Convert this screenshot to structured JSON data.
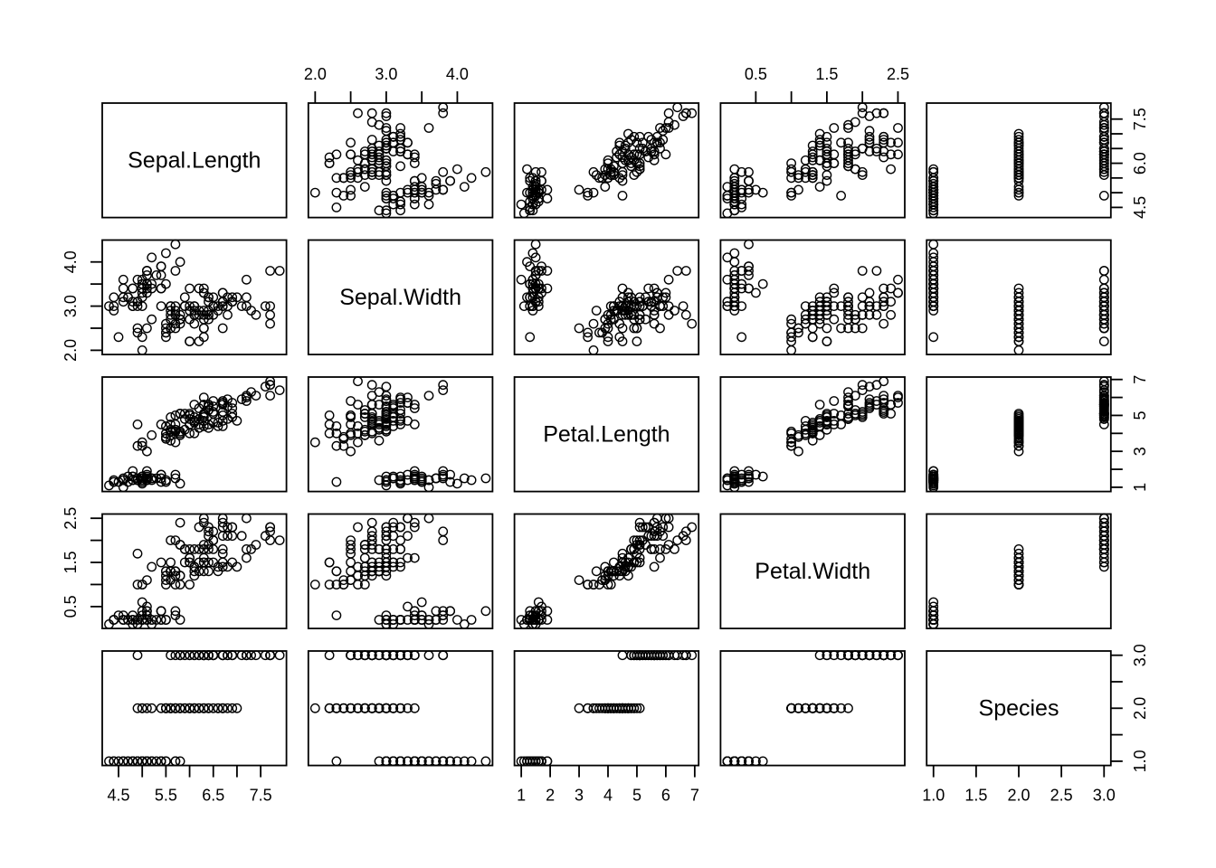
{
  "figure": {
    "background": "#ffffff",
    "stroke_color": "#000000"
  },
  "chart_data": {
    "type": "scatter",
    "subtype": "scatterplot-matrix",
    "grid": "5x5",
    "diagonal_labels": [
      "Sepal.Length",
      "Sepal.Width",
      "Petal.Length",
      "Petal.Width",
      "Species"
    ],
    "point_style": "open-circle",
    "variables": [
      {
        "name": "Sepal.Length",
        "lim": [
          4.3,
          7.9
        ],
        "ticks": [
          4.5,
          5.0,
          5.5,
          6.0,
          6.5,
          7.0,
          7.5
        ],
        "labels_h": [
          [
            4.5,
            "4.5"
          ],
          [
            5.5,
            "5.5"
          ],
          [
            6.5,
            "6.5"
          ],
          [
            7.5,
            "7.5"
          ]
        ],
        "labels_v": [
          [
            4.5,
            "4.5"
          ],
          [
            6.0,
            "6.0"
          ],
          [
            7.5,
            "7.5"
          ]
        ]
      },
      {
        "name": "Sepal.Width",
        "lim": [
          2.0,
          4.4
        ],
        "ticks": [
          2.0,
          2.5,
          3.0,
          3.5,
          4.0
        ],
        "labels_h": [
          [
            2.0,
            "2.0"
          ],
          [
            3.0,
            "3.0"
          ],
          [
            4.0,
            "4.0"
          ]
        ],
        "labels_v": [
          [
            2.0,
            "2.0"
          ],
          [
            3.0,
            "3.0"
          ],
          [
            4.0,
            "4.0"
          ]
        ]
      },
      {
        "name": "Petal.Length",
        "lim": [
          1.0,
          6.9
        ],
        "ticks": [
          1,
          2,
          3,
          4,
          5,
          6,
          7
        ],
        "labels_h": [
          [
            1,
            "1"
          ],
          [
            2,
            "2"
          ],
          [
            3,
            "3"
          ],
          [
            4,
            "4"
          ],
          [
            5,
            "5"
          ],
          [
            6,
            "6"
          ],
          [
            7,
            "7"
          ]
        ],
        "labels_v": [
          [
            1,
            "1"
          ],
          [
            3,
            "3"
          ],
          [
            5,
            "5"
          ],
          [
            7,
            "7"
          ]
        ]
      },
      {
        "name": "Petal.Width",
        "lim": [
          0.1,
          2.5
        ],
        "ticks": [
          0.5,
          1.0,
          1.5,
          2.0,
          2.5
        ],
        "labels_h": [
          [
            0.5,
            "0.5"
          ],
          [
            1.5,
            "1.5"
          ],
          [
            2.5,
            "2.5"
          ]
        ],
        "labels_v": [
          [
            0.5,
            "0.5"
          ],
          [
            1.5,
            "1.5"
          ],
          [
            2.5,
            "2.5"
          ]
        ]
      },
      {
        "name": "Species",
        "lim": [
          1,
          3
        ],
        "ticks": [
          1.0,
          1.5,
          2.0,
          2.5,
          3.0
        ],
        "labels_h": [
          [
            1.0,
            "1.0"
          ],
          [
            1.5,
            "1.5"
          ],
          [
            2.0,
            "2.0"
          ],
          [
            2.5,
            "2.5"
          ],
          [
            3.0,
            "3.0"
          ]
        ],
        "labels_v": [
          [
            1.0,
            "1.0"
          ],
          [
            2.0,
            "2.0"
          ],
          [
            3.0,
            "3.0"
          ]
        ]
      }
    ],
    "observations": {
      "Sepal.Length": [
        5.1,
        4.9,
        4.7,
        4.6,
        5.0,
        5.4,
        4.6,
        5.0,
        4.4,
        4.9,
        5.4,
        4.8,
        4.8,
        4.3,
        5.8,
        5.7,
        5.4,
        5.1,
        5.7,
        5.1,
        5.4,
        5.1,
        4.6,
        5.1,
        4.8,
        5.0,
        5.0,
        5.2,
        5.2,
        4.7,
        4.8,
        5.4,
        5.2,
        5.5,
        4.9,
        5.0,
        5.5,
        4.9,
        4.4,
        5.1,
        5.0,
        4.5,
        4.4,
        5.0,
        5.1,
        4.8,
        5.1,
        4.6,
        5.3,
        5.0,
        7.0,
        6.4,
        6.9,
        5.5,
        6.5,
        5.7,
        6.3,
        4.9,
        6.6,
        5.2,
        5.0,
        5.9,
        6.0,
        6.1,
        5.6,
        6.7,
        5.6,
        5.8,
        6.2,
        5.6,
        5.9,
        6.1,
        6.3,
        6.1,
        6.4,
        6.6,
        6.8,
        6.7,
        6.0,
        5.7,
        5.5,
        5.5,
        5.8,
        6.0,
        5.4,
        6.0,
        6.7,
        6.3,
        5.6,
        5.5,
        5.5,
        6.1,
        5.8,
        5.0,
        5.6,
        5.7,
        5.7,
        6.2,
        5.1,
        5.7,
        6.3,
        5.8,
        7.1,
        6.3,
        6.5,
        7.6,
        4.9,
        7.3,
        6.7,
        7.2,
        6.5,
        6.4,
        6.8,
        5.7,
        5.8,
        6.4,
        6.5,
        7.7,
        7.7,
        6.0,
        6.9,
        5.6,
        7.7,
        6.3,
        6.7,
        7.2,
        6.2,
        6.1,
        6.4,
        7.2,
        7.4,
        7.9,
        6.4,
        6.3,
        6.1,
        7.7,
        6.3,
        6.4,
        6.0,
        6.9,
        6.7,
        6.9,
        5.8,
        6.8,
        6.7,
        6.7,
        6.3,
        6.5,
        6.2,
        5.9
      ],
      "Sepal.Width": [
        3.5,
        3.0,
        3.2,
        3.1,
        3.6,
        3.9,
        3.4,
        3.4,
        2.9,
        3.1,
        3.7,
        3.4,
        3.0,
        3.0,
        4.0,
        4.4,
        3.9,
        3.5,
        3.8,
        3.8,
        3.4,
        3.7,
        3.6,
        3.3,
        3.4,
        3.0,
        3.4,
        3.5,
        3.4,
        3.2,
        3.1,
        3.4,
        4.1,
        4.2,
        3.1,
        3.2,
        3.5,
        3.6,
        3.0,
        3.4,
        3.5,
        2.3,
        3.2,
        3.5,
        3.8,
        3.0,
        3.8,
        3.2,
        3.7,
        3.3,
        3.2,
        3.2,
        3.1,
        2.3,
        2.8,
        2.8,
        3.3,
        2.4,
        2.9,
        2.7,
        2.0,
        3.0,
        2.2,
        2.9,
        2.9,
        3.1,
        3.0,
        2.7,
        2.2,
        2.5,
        3.2,
        2.8,
        2.5,
        2.8,
        2.9,
        3.0,
        2.8,
        3.0,
        2.9,
        2.6,
        2.4,
        2.4,
        2.7,
        2.7,
        3.0,
        3.4,
        3.1,
        2.3,
        3.0,
        2.5,
        2.6,
        3.0,
        2.6,
        2.3,
        2.7,
        3.0,
        2.9,
        2.9,
        2.5,
        2.8,
        3.3,
        2.7,
        3.0,
        2.9,
        3.0,
        3.0,
        2.5,
        2.9,
        2.5,
        3.6,
        3.2,
        2.7,
        3.0,
        2.5,
        2.8,
        3.2,
        3.0,
        3.8,
        2.6,
        2.2,
        3.2,
        2.8,
        2.8,
        2.7,
        3.3,
        3.2,
        2.8,
        3.0,
        2.8,
        3.0,
        2.8,
        3.8,
        2.8,
        2.8,
        2.6,
        3.0,
        3.4,
        3.1,
        3.0,
        3.1,
        3.1,
        3.1,
        2.7,
        3.2,
        3.3,
        3.0,
        2.5,
        3.0,
        3.4,
        3.0
      ],
      "Petal.Length": [
        1.4,
        1.4,
        1.3,
        1.5,
        1.4,
        1.7,
        1.4,
        1.5,
        1.4,
        1.5,
        1.5,
        1.6,
        1.4,
        1.1,
        1.2,
        1.5,
        1.3,
        1.4,
        1.7,
        1.5,
        1.7,
        1.5,
        1.0,
        1.7,
        1.9,
        1.6,
        1.6,
        1.5,
        1.4,
        1.6,
        1.6,
        1.5,
        1.5,
        1.4,
        1.5,
        1.2,
        1.3,
        1.4,
        1.3,
        1.5,
        1.3,
        1.3,
        1.3,
        1.6,
        1.9,
        1.4,
        1.6,
        1.4,
        1.5,
        1.4,
        4.7,
        4.5,
        4.9,
        4.0,
        4.6,
        4.5,
        4.7,
        3.3,
        4.6,
        3.9,
        3.5,
        4.2,
        4.0,
        4.7,
        3.6,
        4.4,
        4.5,
        4.1,
        4.5,
        3.9,
        4.8,
        4.0,
        4.9,
        4.7,
        4.3,
        4.4,
        4.8,
        5.0,
        4.5,
        3.5,
        3.8,
        3.7,
        3.9,
        5.1,
        4.5,
        4.5,
        4.7,
        4.4,
        4.1,
        4.0,
        4.4,
        4.6,
        4.0,
        3.3,
        4.2,
        4.2,
        4.2,
        4.3,
        3.0,
        4.1,
        6.0,
        5.1,
        5.9,
        5.6,
        5.8,
        6.6,
        4.5,
        6.3,
        5.8,
        6.1,
        5.1,
        5.3,
        5.5,
        5.0,
        5.1,
        5.3,
        5.5,
        6.7,
        6.9,
        5.0,
        5.7,
        4.9,
        6.7,
        4.9,
        5.7,
        6.0,
        4.8,
        4.9,
        5.6,
        5.8,
        6.1,
        6.4,
        5.6,
        5.1,
        5.6,
        6.1,
        5.6,
        5.5,
        4.8,
        5.4,
        5.6,
        5.1,
        5.1,
        5.9,
        5.7,
        5.2,
        5.0,
        5.2,
        5.4,
        5.1
      ],
      "Petal.Width": [
        0.2,
        0.2,
        0.2,
        0.2,
        0.2,
        0.4,
        0.3,
        0.2,
        0.2,
        0.1,
        0.2,
        0.2,
        0.1,
        0.1,
        0.2,
        0.4,
        0.4,
        0.3,
        0.3,
        0.3,
        0.2,
        0.4,
        0.2,
        0.5,
        0.2,
        0.2,
        0.4,
        0.2,
        0.2,
        0.2,
        0.2,
        0.4,
        0.1,
        0.2,
        0.2,
        0.2,
        0.2,
        0.1,
        0.2,
        0.2,
        0.3,
        0.3,
        0.2,
        0.6,
        0.4,
        0.3,
        0.2,
        0.2,
        0.2,
        0.2,
        1.4,
        1.5,
        1.5,
        1.3,
        1.5,
        1.3,
        1.6,
        1.0,
        1.3,
        1.4,
        1.0,
        1.5,
        1.0,
        1.4,
        1.3,
        1.4,
        1.5,
        1.0,
        1.5,
        1.1,
        1.8,
        1.3,
        1.5,
        1.2,
        1.3,
        1.4,
        1.4,
        1.7,
        1.5,
        1.0,
        1.1,
        1.0,
        1.2,
        1.6,
        1.5,
        1.6,
        1.5,
        1.3,
        1.3,
        1.3,
        1.2,
        1.4,
        1.2,
        1.0,
        1.3,
        1.2,
        1.3,
        1.3,
        1.1,
        1.3,
        2.5,
        1.9,
        2.1,
        1.8,
        2.2,
        2.1,
        1.7,
        1.8,
        1.8,
        2.5,
        2.0,
        1.9,
        2.1,
        2.0,
        2.4,
        2.3,
        1.8,
        2.2,
        2.3,
        1.5,
        2.3,
        2.0,
        2.0,
        1.8,
        2.1,
        1.8,
        1.8,
        1.8,
        2.1,
        1.6,
        1.9,
        2.0,
        2.2,
        1.5,
        1.4,
        2.3,
        2.4,
        1.8,
        1.8,
        2.1,
        2.4,
        2.3,
        1.9,
        2.3,
        2.5,
        2.3,
        1.9,
        2.0,
        2.3,
        1.8
      ],
      "Species": [
        1,
        1,
        1,
        1,
        1,
        1,
        1,
        1,
        1,
        1,
        1,
        1,
        1,
        1,
        1,
        1,
        1,
        1,
        1,
        1,
        1,
        1,
        1,
        1,
        1,
        1,
        1,
        1,
        1,
        1,
        1,
        1,
        1,
        1,
        1,
        1,
        1,
        1,
        1,
        1,
        1,
        1,
        1,
        1,
        1,
        1,
        1,
        1,
        1,
        1,
        2,
        2,
        2,
        2,
        2,
        2,
        2,
        2,
        2,
        2,
        2,
        2,
        2,
        2,
        2,
        2,
        2,
        2,
        2,
        2,
        2,
        2,
        2,
        2,
        2,
        2,
        2,
        2,
        2,
        2,
        2,
        2,
        2,
        2,
        2,
        2,
        2,
        2,
        2,
        2,
        2,
        2,
        2,
        2,
        2,
        2,
        2,
        2,
        2,
        2,
        3,
        3,
        3,
        3,
        3,
        3,
        3,
        3,
        3,
        3,
        3,
        3,
        3,
        3,
        3,
        3,
        3,
        3,
        3,
        3,
        3,
        3,
        3,
        3,
        3,
        3,
        3,
        3,
        3,
        3,
        3,
        3,
        3,
        3,
        3,
        3,
        3,
        3,
        3,
        3,
        3,
        3,
        3,
        3,
        3,
        3,
        3,
        3,
        3,
        3
      ]
    }
  }
}
